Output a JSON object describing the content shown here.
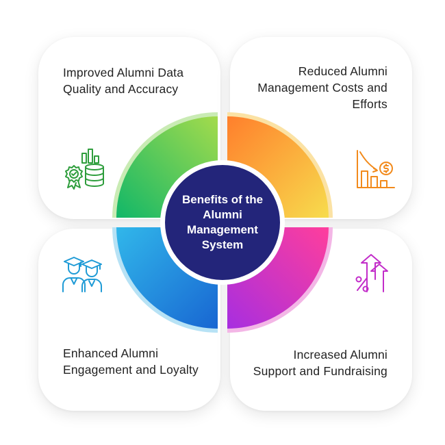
{
  "center": {
    "title": "Benefits of the Alumni Management System"
  },
  "cards": [
    {
      "id": "top-left",
      "text": "Improved Alumni Data Quality and Accuracy",
      "icon": "data-quality-badge-icon",
      "color": "#2e9d3c"
    },
    {
      "id": "top-right",
      "text": "Reduced Alumni Management Costs and Efforts",
      "icon": "cost-reduction-chart-icon",
      "color": "#f28a1b"
    },
    {
      "id": "bottom-left",
      "text": "Enhanced Alumni Engagement and Loyalty",
      "icon": "graduates-icon",
      "color": "#1f9bd6"
    },
    {
      "id": "bottom-right",
      "text": "Increased Alumni Support and Fundraising",
      "icon": "percent-growth-icon",
      "color": "#c22cc9"
    }
  ],
  "colors": {
    "center": "#23257a",
    "green": [
      "#1ec06a",
      "#9bd84a"
    ],
    "orange": [
      "#ff8a2a",
      "#f7d44a"
    ],
    "blue": [
      "#2bb2e8",
      "#1a6fd6"
    ],
    "magenta": [
      "#b02ed8",
      "#ff3fa0"
    ]
  }
}
